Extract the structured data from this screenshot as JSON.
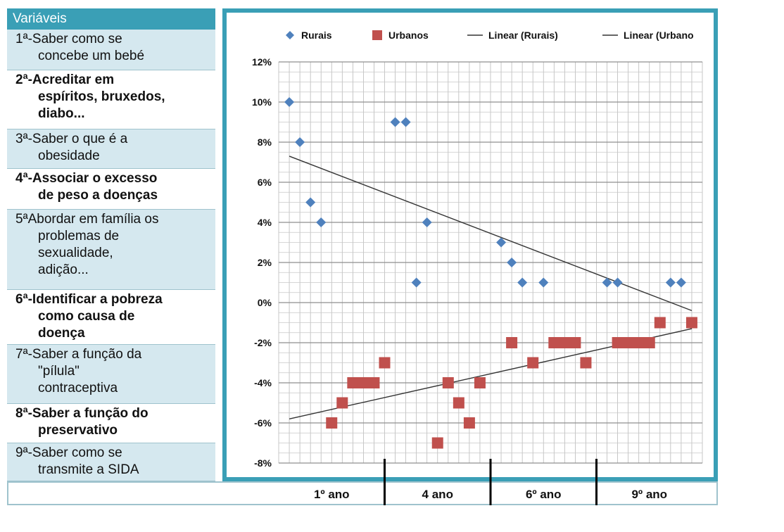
{
  "panel": {
    "header": "Variáveis",
    "items": [
      {
        "lines": [
          "1ª-Saber como se",
          "concebe um bebé"
        ],
        "style": "alt"
      },
      {
        "lines": [
          "2ª-Acreditar em",
          "espíritos, bruxedos,",
          "diabo..."
        ],
        "style": "plain"
      },
      {
        "lines": [
          "3ª-Saber o que é a",
          "obesidade"
        ],
        "style": "alt"
      },
      {
        "lines": [
          "4ª-Associar o excesso",
          "de peso a doenças"
        ],
        "style": "plain"
      },
      {
        "lines": [
          "5ªAbordar em família os",
          "problemas de",
          "sexualidade,",
          "adição..."
        ],
        "style": "alt"
      },
      {
        "lines": [
          "6ª-Identificar a pobreza",
          "como causa de",
          "doença"
        ],
        "style": "plain"
      },
      {
        "lines": [
          "7ª-Saber a função da",
          "\"pílula\"",
          "contraceptiva"
        ],
        "style": "alt"
      },
      {
        "lines": [
          "8ª-Saber a função do",
          "preservativo"
        ],
        "style": "plain"
      },
      {
        "lines": [
          "9ª-Saber como se",
          "transmite a SIDA"
        ],
        "style": "alt"
      }
    ]
  },
  "chart_data": {
    "type": "scatter",
    "title": "",
    "xlabel": "",
    "ylabel": "",
    "ylim": [
      -8,
      12
    ],
    "y_ticks": [
      "12%",
      "10%",
      "8%",
      "6%",
      "4%",
      "2%",
      "0%",
      "-2%",
      "-4%",
      "-6%",
      "-8%"
    ],
    "categories": [
      "1º ano",
      "4 ano",
      "6º ano",
      "9º ano"
    ],
    "grid": true,
    "legend_position": "top",
    "legend": [
      {
        "label": "Rurais",
        "marker": "diamond"
      },
      {
        "label": "Urbanos",
        "marker": "square"
      },
      {
        "label": "Linear (Rurais)",
        "marker": "line"
      },
      {
        "label": "Linear (Urbano",
        "marker": "line"
      }
    ],
    "series": [
      {
        "name": "Rurais",
        "color": "#4f81bd",
        "marker": "diamond",
        "x": [
          1,
          2,
          3,
          4,
          11,
          12,
          13,
          14,
          21,
          22,
          23,
          25,
          31,
          32,
          37,
          38
        ],
        "y": [
          10,
          8,
          5,
          4,
          9,
          9,
          1,
          4,
          3,
          2,
          1,
          1,
          1,
          1,
          1,
          1
        ]
      },
      {
        "name": "Urbanos",
        "color": "#c0504d",
        "marker": "square",
        "x": [
          5,
          6,
          7,
          8,
          9,
          10,
          15,
          16,
          17,
          18,
          19,
          22,
          24,
          26,
          27,
          28,
          29,
          32,
          33,
          34,
          35,
          36,
          39
        ],
        "y": [
          -6,
          -5,
          -4,
          -4,
          -4,
          -3,
          -7,
          -4,
          -5,
          -6,
          -4,
          -2,
          -3,
          -2,
          -2,
          -2,
          -3,
          -2,
          -2,
          -2,
          -2,
          -1,
          -1
        ]
      }
    ],
    "trendlines": [
      {
        "name": "Linear (Rurais)",
        "from": [
          1,
          7.3
        ],
        "to": [
          39,
          -0.4
        ],
        "color": "#333333"
      },
      {
        "name": "Linear (Urbano",
        "from": [
          1,
          -5.8
        ],
        "to": [
          39,
          -1.3
        ],
        "color": "#333333"
      }
    ],
    "x_range": [
      0,
      40
    ],
    "category_bounds": [
      10,
      20,
      30
    ]
  }
}
